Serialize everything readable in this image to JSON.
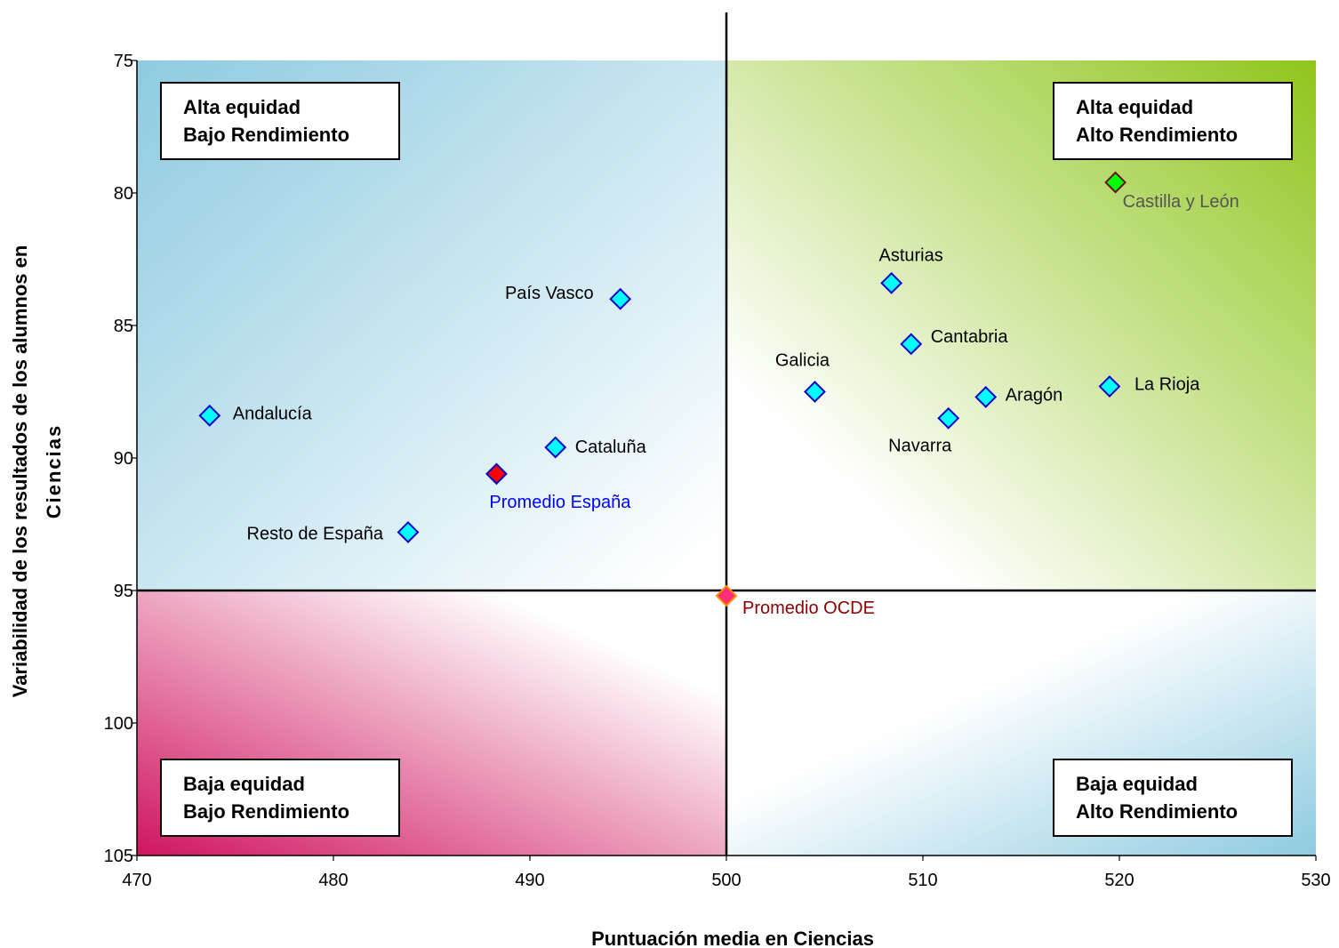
{
  "chart_data": {
    "type": "scatter",
    "xlabel": "Puntuación media en Ciencias",
    "ylabel": "Variabilidad de los resultados de los alumnos en Ciencias",
    "xlim": [
      470,
      530
    ],
    "ylim": [
      75,
      105
    ],
    "y_inverted": true,
    "x_ticks": [
      "470",
      "480",
      "490",
      "500",
      "510",
      "520",
      "530"
    ],
    "y_ticks": [
      "75",
      "80",
      "85",
      "90",
      "95",
      "100",
      "105"
    ],
    "reference_lines": {
      "x": 500,
      "y": 95
    },
    "quadrants": [
      {
        "id": "top-left",
        "line1": "Alta equidad",
        "line2": "Bajo Rendimiento"
      },
      {
        "id": "top-right",
        "line1": "Alta equidad",
        "line2": "Alto Rendimiento"
      },
      {
        "id": "bottom-left",
        "line1": "Baja equidad",
        "line2": "Bajo Rendimiento"
      },
      {
        "id": "bottom-right",
        "line1": "Baja equidad",
        "line2": "Alto Rendimiento"
      }
    ],
    "points": [
      {
        "label": "Andalucía",
        "x": 473.7,
        "y": 88.4,
        "color": "#00ffff",
        "label_color": "#000000"
      },
      {
        "label": "Resto de España",
        "x": 483.8,
        "y": 92.8,
        "color": "#00ffff",
        "label_color": "#000000"
      },
      {
        "label": "Cataluña",
        "x": 491.3,
        "y": 89.6,
        "color": "#00ffff",
        "label_color": "#000000"
      },
      {
        "label": "País Vasco",
        "x": 494.6,
        "y": 84.0,
        "color": "#00ffff",
        "label_color": "#000000"
      },
      {
        "label": "Promedio España",
        "x": 488.3,
        "y": 90.6,
        "color": "#ff0000",
        "label_color": "#0000ff"
      },
      {
        "label": "Promedio OCDE",
        "x": 500.0,
        "y": 95.2,
        "color": "#ff2d78",
        "label_color": "#8b0000"
      },
      {
        "label": "Galicia",
        "x": 504.5,
        "y": 87.5,
        "color": "#00ffff",
        "label_color": "#000000"
      },
      {
        "label": "Asturias",
        "x": 508.4,
        "y": 83.4,
        "color": "#00ffff",
        "label_color": "#000000"
      },
      {
        "label": "Cantabria",
        "x": 509.4,
        "y": 85.7,
        "color": "#00ffff",
        "label_color": "#000000"
      },
      {
        "label": "Navarra",
        "x": 511.3,
        "y": 88.5,
        "color": "#00ffff",
        "label_color": "#000000"
      },
      {
        "label": "Aragón",
        "x": 513.2,
        "y": 87.7,
        "color": "#00ffff",
        "label_color": "#000000"
      },
      {
        "label": "La Rioja",
        "x": 519.5,
        "y": 87.3,
        "color": "#00ffff",
        "label_color": "#000000"
      },
      {
        "label": "Castilla y León",
        "x": 519.8,
        "y": 79.6,
        "color": "#00ff00",
        "label_color": "#555555"
      }
    ],
    "colors": {
      "top_left_gradient": [
        "#8ecbe0",
        "#ffffff"
      ],
      "top_right_gradient": [
        "#8fc51c",
        "#ffffff"
      ],
      "bottom_left_gradient": [
        "#d0155f",
        "#ffffff"
      ],
      "bottom_right_gradient": [
        "#8ecbe0",
        "#ffffff"
      ],
      "marker_stroke": "#0000cc"
    }
  }
}
